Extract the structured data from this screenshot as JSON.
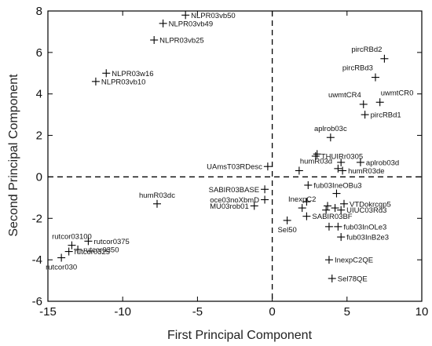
{
  "chart_data": {
    "type": "scatter",
    "title": "",
    "xlabel": "First Principal Component",
    "ylabel": "Second Principal Component",
    "xlim": [
      -15,
      10
    ],
    "ylim": [
      -6,
      8
    ],
    "xticks": [
      -15,
      -10,
      -5,
      0,
      5,
      10
    ],
    "yticks": [
      -6,
      -4,
      -2,
      0,
      2,
      4,
      6,
      8
    ],
    "grid": false,
    "reference_lines": [
      {
        "axis": "x",
        "value": 0,
        "style": "dashed"
      },
      {
        "axis": "y",
        "value": 0,
        "style": "dashed"
      }
    ],
    "points": [
      {
        "label": "NLPR03vb50",
        "x": -5.8,
        "y": 7.8,
        "label_pos": "right"
      },
      {
        "label": "NLPR03vb49",
        "x": -7.3,
        "y": 7.4,
        "label_pos": "right"
      },
      {
        "label": "NLPR03vb25",
        "x": -7.9,
        "y": 6.6,
        "label_pos": "right"
      },
      {
        "label": "NLPR03w16",
        "x": -11.1,
        "y": 5.0,
        "label_pos": "right"
      },
      {
        "label": "NLPR03vb10",
        "x": -11.8,
        "y": 4.6,
        "label_pos": "right"
      },
      {
        "label": "pircRBd2",
        "x": 7.5,
        "y": 5.7,
        "label_pos": "left-above"
      },
      {
        "label": "pircRBd3",
        "x": 6.9,
        "y": 4.8,
        "label_pos": "left-above"
      },
      {
        "label": "uwmtCR4",
        "x": 6.1,
        "y": 3.5,
        "label_pos": "left-above"
      },
      {
        "label": "uwmtCR0",
        "x": 7.2,
        "y": 3.6,
        "label_pos": "right-above"
      },
      {
        "label": "pircRBd1",
        "x": 6.2,
        "y": 3.0,
        "label_pos": "right"
      },
      {
        "label": "aplrob03c",
        "x": 3.9,
        "y": 1.9,
        "label_pos": "above"
      },
      {
        "label": "THUIRr0305",
        "x": 2.9,
        "y": 1.0,
        "label_pos": "right"
      },
      {
        "label": "aplrob03d",
        "x": 5.9,
        "y": 0.7,
        "label_pos": "right"
      },
      {
        "label": "humR03d",
        "x": 1.8,
        "y": 0.3,
        "label_pos": "right-above"
      },
      {
        "label": "humR03de",
        "x": 4.7,
        "y": 0.3,
        "label_pos": "right"
      },
      {
        "label": "UAmsT03RDesc",
        "x": -0.3,
        "y": 0.5,
        "label_pos": "left"
      },
      {
        "label": "fub03IneOBu3",
        "x": 2.4,
        "y": -0.4,
        "label_pos": "right"
      },
      {
        "label": "SABIR03BASE",
        "x": -0.5,
        "y": -0.6,
        "label_pos": "left"
      },
      {
        "label": "oce03noXbmD",
        "x": -0.5,
        "y": -1.1,
        "label_pos": "left"
      },
      {
        "label": "MU03rob01",
        "x": -1.2,
        "y": -1.4,
        "label_pos": "left"
      },
      {
        "label": "humR03dc",
        "x": -7.7,
        "y": -1.3,
        "label_pos": "above"
      },
      {
        "label": "InexpC2",
        "x": 2.0,
        "y": -1.5,
        "label_pos": "above"
      },
      {
        "label": "VTDokrcgp5",
        "x": 4.8,
        "y": -1.3,
        "label_pos": "right"
      },
      {
        "label": "UIUC03Rd3",
        "x": 4.6,
        "y": -1.6,
        "label_pos": "right"
      },
      {
        "label": "SABIR03BF",
        "x": 2.3,
        "y": -1.9,
        "label_pos": "right"
      },
      {
        "label": "Sel50",
        "x": 1.0,
        "y": -2.1,
        "label_pos": "below"
      },
      {
        "label": "fub03InOLe3",
        "x": 4.4,
        "y": -2.4,
        "label_pos": "right"
      },
      {
        "label": "fub03InB2e3",
        "x": 4.6,
        "y": -2.9,
        "label_pos": "right"
      },
      {
        "label": "InexpC2QE",
        "x": 3.8,
        "y": -4.0,
        "label_pos": "right"
      },
      {
        "label": "Sel78QE",
        "x": 4.0,
        "y": -4.9,
        "label_pos": "right"
      },
      {
        "label": "rutcor03100",
        "x": -13.4,
        "y": -3.3,
        "label_pos": "above"
      },
      {
        "label": "rutcor0375",
        "x": -12.3,
        "y": -3.1,
        "label_pos": "right"
      },
      {
        "label": "rutcor0350",
        "x": -13.0,
        "y": -3.5,
        "label_pos": "right"
      },
      {
        "label": "rutcor0325",
        "x": -13.6,
        "y": -3.6,
        "label_pos": "right"
      },
      {
        "label": "rutcor030",
        "x": -14.1,
        "y": -3.9,
        "label_pos": "below"
      }
    ],
    "extra_marks": [
      {
        "x": 4.3,
        "y": -0.8
      },
      {
        "x": 3.0,
        "y": 1.1
      },
      {
        "x": 4.6,
        "y": 0.7
      },
      {
        "x": 4.4,
        "y": 0.4
      },
      {
        "x": 2.3,
        "y": -1.2
      },
      {
        "x": 3.7,
        "y": -1.4
      },
      {
        "x": 3.6,
        "y": -1.6
      },
      {
        "x": 3.8,
        "y": -2.4
      },
      {
        "x": 4.2,
        "y": -1.5
      }
    ]
  }
}
